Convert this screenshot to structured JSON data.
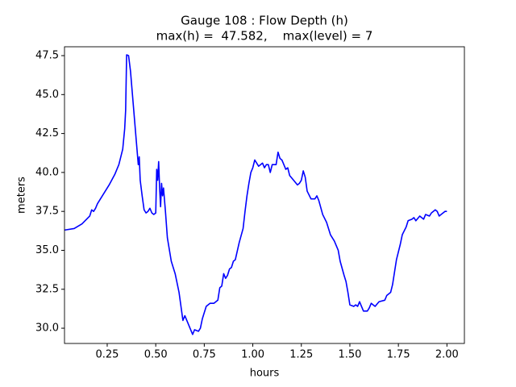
{
  "chart_data": {
    "type": "line",
    "title": "Gauge 108 : Flow Depth (h)",
    "subtitle": "max(h) =  47.582,    max(level) = 7",
    "x_label": "hours",
    "y_label": "meters",
    "xlim": [
      0.03,
      2.09
    ],
    "ylim": [
      29.02,
      48.07
    ],
    "xticks": [
      0.25,
      {
        "value": 0.5,
        "label": "0.50"
      },
      0.75,
      {
        "value": 1,
        "label": "1.00"
      },
      1.25,
      {
        "value": 1.5,
        "label": "1.50"
      },
      1.75,
      {
        "value": 2,
        "label": "2.00"
      }
    ],
    "yticks": [
      {
        "value": 30,
        "label": "30.0"
      },
      32.5,
      {
        "value": 35,
        "label": "35.0"
      },
      37.5,
      {
        "value": 40,
        "label": "40.0"
      },
      42.5,
      {
        "value": 45,
        "label": "45.0"
      },
      47.5
    ],
    "grid": false,
    "series": [
      {
        "color": "#0000ff",
        "x": [
          0.03,
          0.08,
          0.12,
          0.16,
          0.17,
          0.18,
          0.19,
          0.2,
          0.23,
          0.26,
          0.29,
          0.31,
          0.33,
          0.34,
          0.345,
          0.35,
          0.36,
          0.37,
          0.38,
          0.39,
          0.4,
          0.41,
          0.415,
          0.42,
          0.43,
          0.44,
          0.45,
          0.46,
          0.47,
          0.48,
          0.49,
          0.5,
          0.505,
          0.51,
          0.515,
          0.52,
          0.525,
          0.53,
          0.535,
          0.54,
          0.55,
          0.56,
          0.58,
          0.6,
          0.62,
          0.64,
          0.65,
          0.67,
          0.69,
          0.7,
          0.72,
          0.73,
          0.74,
          0.76,
          0.78,
          0.8,
          0.82,
          0.83,
          0.84,
          0.85,
          0.86,
          0.87,
          0.88,
          0.89,
          0.9,
          0.91,
          0.93,
          0.95,
          0.96,
          0.97,
          0.98,
          0.99,
          1.0,
          1.01,
          1.02,
          1.03,
          1.04,
          1.05,
          1.06,
          1.07,
          1.08,
          1.09,
          1.1,
          1.12,
          1.13,
          1.14,
          1.15,
          1.16,
          1.17,
          1.18,
          1.19,
          1.21,
          1.23,
          1.24,
          1.25,
          1.26,
          1.27,
          1.28,
          1.3,
          1.32,
          1.33,
          1.34,
          1.36,
          1.38,
          1.4,
          1.42,
          1.44,
          1.45,
          1.47,
          1.48,
          1.49,
          1.5,
          1.52,
          1.53,
          1.54,
          1.55,
          1.56,
          1.57,
          1.59,
          1.6,
          1.61,
          1.62,
          1.63,
          1.65,
          1.68,
          1.69,
          1.71,
          1.72,
          1.73,
          1.74,
          1.76,
          1.77,
          1.79,
          1.8,
          1.82,
          1.83,
          1.84,
          1.86,
          1.88,
          1.89,
          1.91,
          1.92,
          1.94,
          1.95,
          1.96,
          1.97,
          1.99,
          2.0
        ],
        "values": [
          36.3,
          36.4,
          36.7,
          37.2,
          37.6,
          37.5,
          37.7,
          38.0,
          38.6,
          39.2,
          39.9,
          40.5,
          41.5,
          42.8,
          44.0,
          47.55,
          47.5,
          46.5,
          45.0,
          43.5,
          42.0,
          40.5,
          41.0,
          39.5,
          38.5,
          37.6,
          37.4,
          37.5,
          37.7,
          37.4,
          37.3,
          37.4,
          40.2,
          39.5,
          40.7,
          39.0,
          37.8,
          39.3,
          38.5,
          39.0,
          37.5,
          35.8,
          34.3,
          33.5,
          32.3,
          30.5,
          30.8,
          30.2,
          29.6,
          29.9,
          29.8,
          30.0,
          30.6,
          31.4,
          31.6,
          31.6,
          31.8,
          32.6,
          32.7,
          33.5,
          33.2,
          33.4,
          33.8,
          33.9,
          34.3,
          34.4,
          35.5,
          36.4,
          37.5,
          38.5,
          39.3,
          40.0,
          40.3,
          40.8,
          40.6,
          40.4,
          40.5,
          40.6,
          40.3,
          40.5,
          40.5,
          40.0,
          40.5,
          40.5,
          41.3,
          40.9,
          40.8,
          40.5,
          40.2,
          40.3,
          39.8,
          39.5,
          39.2,
          39.3,
          39.5,
          40.1,
          39.7,
          38.8,
          38.3,
          38.3,
          38.5,
          38.2,
          37.3,
          36.8,
          36.0,
          35.6,
          35.0,
          34.3,
          33.4,
          33.0,
          32.3,
          31.5,
          31.4,
          31.5,
          31.4,
          31.7,
          31.4,
          31.1,
          31.1,
          31.3,
          31.6,
          31.5,
          31.4,
          31.7,
          31.8,
          32.1,
          32.3,
          32.8,
          33.6,
          34.4,
          35.4,
          36.0,
          36.5,
          36.9,
          37.0,
          37.1,
          36.9,
          37.2,
          37.0,
          37.3,
          37.2,
          37.4,
          37.6,
          37.5,
          37.2,
          37.3,
          37.5,
          37.5
        ]
      }
    ]
  }
}
